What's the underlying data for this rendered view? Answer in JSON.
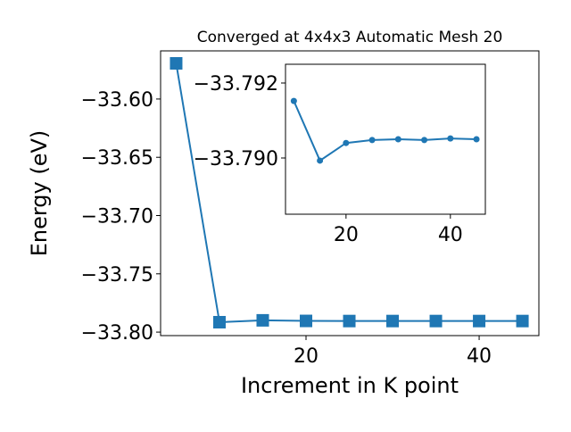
{
  "chart_data": [
    {
      "type": "line",
      "title": "Converged at 4x4x3 Automatic Mesh 20",
      "x_label": "Increment in K point",
      "y_label": "Energy (eV)",
      "x": [
        5,
        10,
        15,
        20,
        25,
        30,
        35,
        40,
        45
      ],
      "values": [
        -33.5694,
        -33.7915,
        -33.7899,
        -33.7904,
        -33.7905,
        -33.7905,
        -33.7905,
        -33.7905,
        -33.7905
      ],
      "color": "#1f77b4",
      "marker": "square",
      "xlim": [
        3.2,
        46.9
      ],
      "ylim": [
        -33.803,
        -33.5587
      ],
      "xticks": [
        20,
        40
      ],
      "yticks": [
        {
          "value": -33.6,
          "label": "−33.60"
        },
        {
          "value": -33.65,
          "label": "−33.65"
        },
        {
          "value": -33.7,
          "label": "−33.70"
        },
        {
          "value": -33.75,
          "label": "−33.75"
        },
        {
          "value": -33.8,
          "label": "−33.80"
        }
      ]
    },
    {
      "type": "line",
      "x": [
        10,
        15,
        20,
        25,
        30,
        35,
        40,
        45
      ],
      "values": [
        -33.79152,
        -33.78993,
        -33.7904,
        -33.79048,
        -33.7905,
        -33.79048,
        -33.79052,
        -33.7905
      ],
      "color": "#1f77b4",
      "marker": "circle",
      "xlim": [
        8.4,
        46.7
      ],
      "ylim": [
        -33.7885,
        -33.7925
      ],
      "xticks": [
        20,
        40
      ],
      "yticks": [
        {
          "value": -33.792,
          "label": "−33.792"
        },
        {
          "value": -33.79,
          "label": "−33.790"
        }
      ]
    }
  ]
}
